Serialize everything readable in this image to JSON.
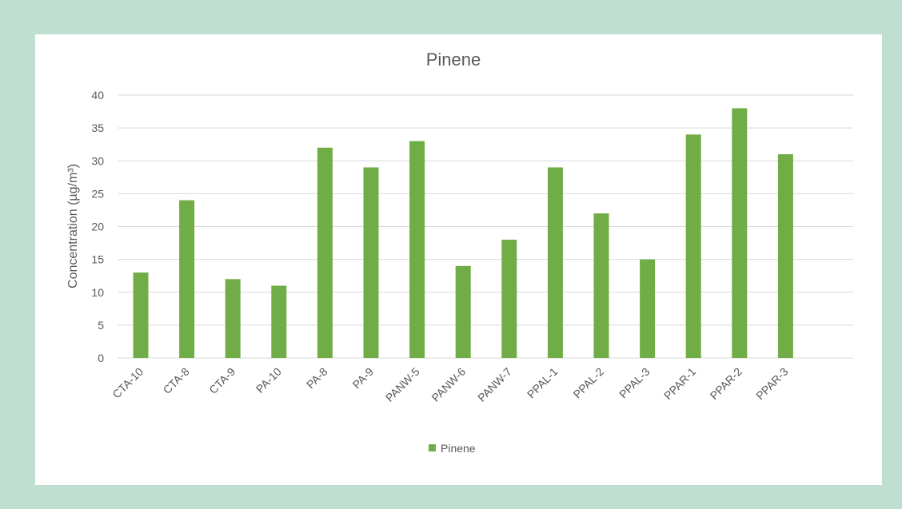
{
  "chart_data": {
    "type": "bar",
    "title": "Pinene",
    "xlabel": "",
    "ylabel": "Concentration (µg/m³)",
    "categories": [
      "CTA-10",
      "CTA-8",
      "CTA-9",
      "PA-10",
      "PA-8",
      "PA-9",
      "PANW-5",
      "PANW-6",
      "PANW-7",
      "PPAL-1",
      "PPAL-2",
      "PPAL-3",
      "PPAR-1",
      "PPAR-2",
      "PPAR-3"
    ],
    "series": [
      {
        "name": "Pinene",
        "values": [
          13,
          24,
          12,
          11,
          32,
          29,
          33,
          14,
          18,
          29,
          22,
          15,
          34,
          38,
          31
        ],
        "color": "#70ad47"
      }
    ],
    "ylim": [
      0,
      40
    ],
    "yticks": [
      0,
      5,
      10,
      15,
      20,
      25,
      30,
      35,
      40
    ],
    "grid": true,
    "legend_position": "bottom"
  },
  "colors": {
    "background": "#bfe0d1",
    "panel": "#ffffff",
    "bar": "#70ad47",
    "gridline": "#d9d9d9",
    "text": "#595959"
  }
}
